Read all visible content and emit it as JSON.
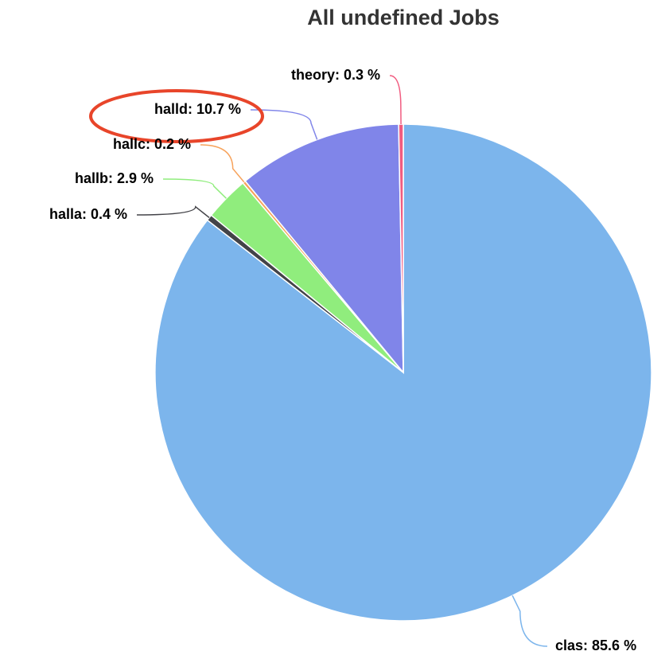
{
  "chart_data": {
    "type": "pie",
    "title": "All undefined Jobs",
    "values": [
      85.6,
      0.4,
      2.9,
      0.2,
      10.7,
      0.3
    ],
    "value_labels": [
      "clas: 85.6 %",
      "halla: 0.4 %",
      "hallb: 2.9 %",
      "hallc: 0.2 %",
      "halld: 10.7 %",
      "theory: 0.3 %"
    ],
    "colors": [
      "#7cb5ec",
      "#434348",
      "#90ed7d",
      "#f7a35c",
      "#8085e9",
      "#f15c80"
    ]
  }
}
